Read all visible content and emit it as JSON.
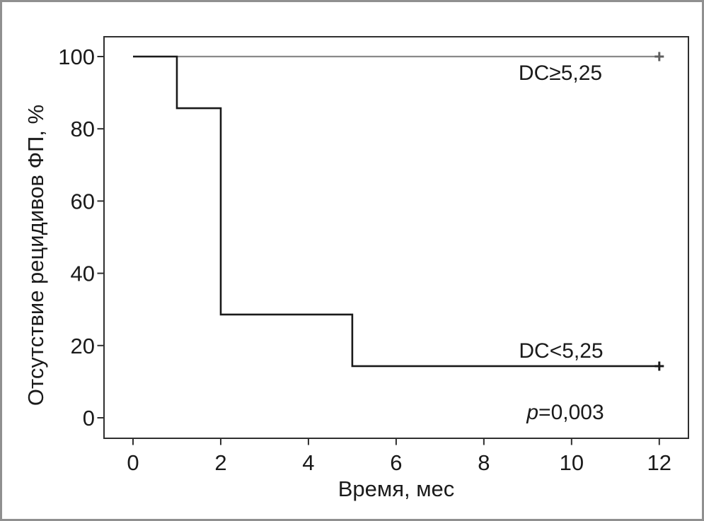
{
  "figure": {
    "xlabel": "Время, мес",
    "ylabel": "Отсутствие рецидивов ФП, %"
  },
  "annotations": {
    "p_symbol": "p",
    "p_value": "=0,003"
  },
  "colors": {
    "frame_border": "#909090",
    "plot_border": "#2f2f2f",
    "background": "#ffffff",
    "text": "#1a1a1a",
    "curve_high_group": "#8a8a8a",
    "curve_low_group": "#1a1a1a"
  },
  "chart_data": {
    "type": "line",
    "subtype": "kaplan_meier_step",
    "title": "",
    "xlabel": "Время, мес",
    "ylabel": "Отсутствие рецидивов ФП, %",
    "xlim": [
      0,
      12
    ],
    "ylim": [
      0,
      100
    ],
    "xticks": [
      0,
      2,
      4,
      6,
      8,
      10,
      12
    ],
    "yticks": [
      0,
      20,
      40,
      60,
      80,
      100
    ],
    "grid": false,
    "legend_position": "labels-inside-plot",
    "p_annotation": "p=0,003",
    "series": [
      {
        "name": "DC≥5,25",
        "color": "#8a8a8a",
        "censor_color": "#5f5f5f",
        "step_points": [
          [
            0,
            100
          ],
          [
            12,
            100
          ]
        ],
        "censored": [
          [
            12,
            100
          ]
        ]
      },
      {
        "name": "DC<5,25",
        "color": "#1a1a1a",
        "censor_color": "#1a1a1a",
        "step_points": [
          [
            0,
            100
          ],
          [
            1,
            100
          ],
          [
            1,
            85.7
          ],
          [
            2,
            85.7
          ],
          [
            2,
            28.6
          ],
          [
            5,
            28.6
          ],
          [
            5,
            14.3
          ],
          [
            12,
            14.3
          ]
        ],
        "censored": [
          [
            12,
            14.3
          ]
        ]
      }
    ]
  }
}
